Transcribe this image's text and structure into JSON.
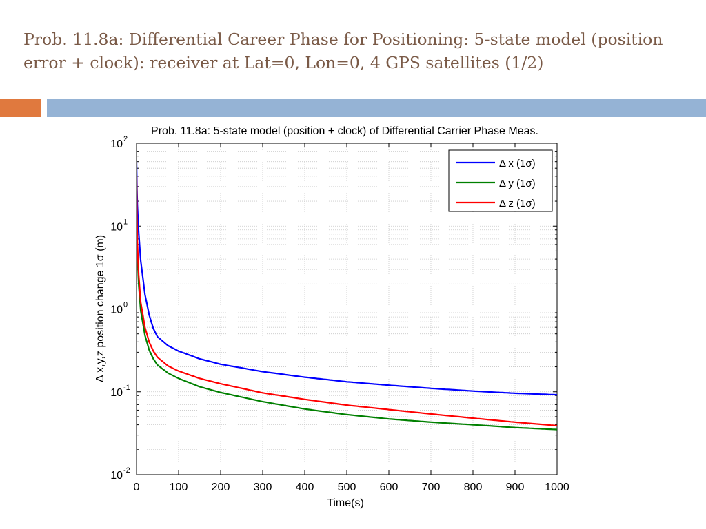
{
  "slide": {
    "title": "Prob. 11.8a: Differential Career Phase for Positioning: 5-state model (position error + clock): receiver at Lat=0, Lon=0, 4 GPS satellites (1/2)",
    "accent_colors": {
      "orange": "#e0793e",
      "blue": "#95b3d5"
    }
  },
  "chart_data": {
    "type": "line",
    "title": "Prob. 11.8a: 5-state model (position + clock) of Differential Carrier Phase Meas.",
    "xlabel": "Time(s)",
    "ylabel": "Δ x,y,z position change 1σ (m)",
    "xlim": [
      0,
      1000
    ],
    "ylim": [
      0.01,
      100
    ],
    "yscale": "log",
    "grid": true,
    "legend_position": "top-right",
    "x_ticks": [
      "0",
      "100",
      "200",
      "300",
      "400",
      "500",
      "600",
      "700",
      "800",
      "900",
      "1000"
    ],
    "y_ticks": [
      {
        "base": "10",
        "exp": "2",
        "value": 100
      },
      {
        "base": "10",
        "exp": "1",
        "value": 10
      },
      {
        "base": "10",
        "exp": "0",
        "value": 1
      },
      {
        "base": "10",
        "exp": "-1",
        "value": 0.1
      },
      {
        "base": "10",
        "exp": "-2",
        "value": 0.01
      }
    ],
    "x": [
      0,
      1,
      2,
      5,
      10,
      20,
      30,
      40,
      50,
      75,
      100,
      150,
      200,
      300,
      400,
      500,
      600,
      700,
      800,
      900,
      1000
    ],
    "series": [
      {
        "name": "Δ x (1σ)",
        "color": "#0000ff",
        "values": [
          60,
          28,
          18,
          8.5,
          3.8,
          1.5,
          0.85,
          0.58,
          0.46,
          0.36,
          0.31,
          0.25,
          0.215,
          0.175,
          0.15,
          0.132,
          0.12,
          0.11,
          0.102,
          0.096,
          0.092
        ]
      },
      {
        "name": "Δ y (1σ)",
        "color": "#008000",
        "values": [
          30,
          9,
          5,
          2.0,
          0.95,
          0.48,
          0.32,
          0.25,
          0.21,
          0.168,
          0.145,
          0.115,
          0.098,
          0.076,
          0.062,
          0.053,
          0.047,
          0.043,
          0.04,
          0.037,
          0.035
        ]
      },
      {
        "name": "Δ z (1σ)",
        "color": "#ff0000",
        "values": [
          40,
          12,
          6.5,
          2.6,
          1.2,
          0.6,
          0.4,
          0.31,
          0.26,
          0.205,
          0.178,
          0.145,
          0.125,
          0.097,
          0.081,
          0.069,
          0.061,
          0.054,
          0.048,
          0.043,
          0.039
        ]
      }
    ]
  }
}
